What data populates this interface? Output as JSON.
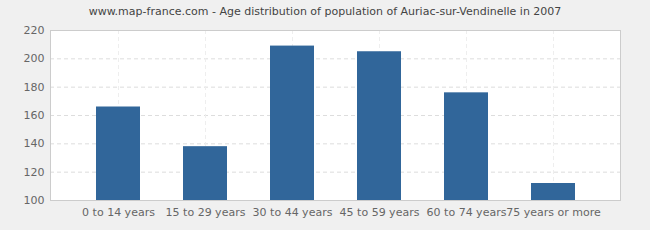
{
  "chart_data": {
    "type": "bar",
    "title": "www.map-france.com - Age distribution of population of Auriac-sur-Vendinelle in 2007",
    "categories": [
      "0 to 14 years",
      "15 to 29 years",
      "30 to 44 years",
      "45 to 59 years",
      "60 to 74 years",
      "75 years or more"
    ],
    "values": [
      166,
      138,
      209,
      205,
      176,
      112
    ],
    "color": "#31669a",
    "ylim": [
      100,
      220
    ],
    "yticks": [
      100,
      120,
      140,
      160,
      180,
      200,
      220
    ],
    "grid": true
  }
}
